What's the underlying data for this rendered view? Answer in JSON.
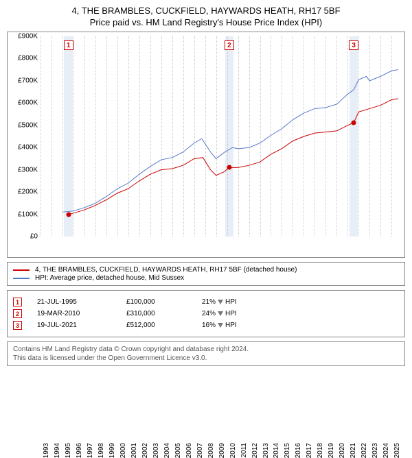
{
  "title_line1": "4, THE BRAMBLES, CUCKFIELD, HAYWARDS HEATH, RH17 5BF",
  "title_line2": "Price paid vs. HM Land Registry's House Price Index (HPI)",
  "chart": {
    "type": "line",
    "x_years": [
      1993,
      1994,
      1995,
      1996,
      1997,
      1998,
      1999,
      2000,
      2001,
      2002,
      2003,
      2004,
      2005,
      2006,
      2007,
      2008,
      2009,
      2010,
      2011,
      2012,
      2013,
      2014,
      2015,
      2016,
      2017,
      2018,
      2019,
      2020,
      2021,
      2022,
      2023,
      2024,
      2025
    ],
    "xlim": [
      1993,
      2025.8
    ],
    "ylim": [
      0,
      900
    ],
    "y_unit_prefix": "£",
    "y_unit_suffix": "K",
    "ytick_step": 100,
    "tick_fontsize": 10,
    "x_tick_rotation_deg": -90,
    "series": {
      "property": {
        "color": "#cc0000",
        "width": 1,
        "label": "4, THE BRAMBLES, CUCKFIELD, HAYWARDS HEATH, RH17 5BF (detached house)",
        "data": [
          [
            1995.55,
            100
          ],
          [
            1996,
            105
          ],
          [
            1997,
            120
          ],
          [
            1998,
            140
          ],
          [
            1999,
            165
          ],
          [
            2000,
            195
          ],
          [
            2001,
            215
          ],
          [
            2002,
            250
          ],
          [
            2003,
            280
          ],
          [
            2004,
            300
          ],
          [
            2005,
            305
          ],
          [
            2006,
            320
          ],
          [
            2007,
            350
          ],
          [
            2007.8,
            355
          ],
          [
            2008.5,
            300
          ],
          [
            2009,
            275
          ],
          [
            2009.7,
            290
          ],
          [
            2010.21,
            310
          ],
          [
            2011,
            310
          ],
          [
            2012,
            320
          ],
          [
            2013,
            335
          ],
          [
            2014,
            370
          ],
          [
            2015,
            395
          ],
          [
            2016,
            430
          ],
          [
            2017,
            450
          ],
          [
            2018,
            465
          ],
          [
            2019,
            470
          ],
          [
            2020,
            475
          ],
          [
            2021,
            500
          ],
          [
            2021.55,
            512
          ],
          [
            2022,
            560
          ],
          [
            2023,
            575
          ],
          [
            2024,
            590
          ],
          [
            2025,
            615
          ],
          [
            2025.6,
            620
          ]
        ]
      },
      "hpi": {
        "color": "#5577cc",
        "width": 1,
        "label": "HPI: Average price, detached house, Mid Sussex",
        "data": [
          [
            1995,
            110
          ],
          [
            1996,
            115
          ],
          [
            1997,
            130
          ],
          [
            1998,
            150
          ],
          [
            1999,
            180
          ],
          [
            2000,
            215
          ],
          [
            2001,
            240
          ],
          [
            2002,
            280
          ],
          [
            2003,
            315
          ],
          [
            2004,
            345
          ],
          [
            2005,
            355
          ],
          [
            2006,
            380
          ],
          [
            2007,
            420
          ],
          [
            2007.7,
            440
          ],
          [
            2008.5,
            380
          ],
          [
            2009,
            350
          ],
          [
            2009.8,
            380
          ],
          [
            2010.5,
            400
          ],
          [
            2011,
            395
          ],
          [
            2012,
            400
          ],
          [
            2013,
            420
          ],
          [
            2014,
            455
          ],
          [
            2015,
            485
          ],
          [
            2016,
            525
          ],
          [
            2017,
            555
          ],
          [
            2018,
            575
          ],
          [
            2019,
            580
          ],
          [
            2020,
            595
          ],
          [
            2021,
            640
          ],
          [
            2021.55,
            660
          ],
          [
            2022,
            705
          ],
          [
            2022.7,
            720
          ],
          [
            2023,
            700
          ],
          [
            2024,
            720
          ],
          [
            2025,
            745
          ],
          [
            2025.6,
            750
          ]
        ]
      }
    },
    "marker_band_color": "#e8eef7",
    "marker_band_half_width_years": 0.4,
    "marker_box_border": "#cc0000",
    "marker_box_text_color": "#cc0000",
    "markers": [
      {
        "n": "1",
        "year": 1995.55,
        "value": 100,
        "date_label": "21-JUL-1995",
        "price_label": "£100,000",
        "delta_pct": "21%",
        "delta_dir": "down",
        "delta_vs": "HPI"
      },
      {
        "n": "2",
        "year": 2010.21,
        "value": 310,
        "date_label": "19-MAR-2010",
        "price_label": "£310,000",
        "delta_pct": "24%",
        "delta_dir": "down",
        "delta_vs": "HPI"
      },
      {
        "n": "3",
        "year": 2021.55,
        "value": 512,
        "date_label": "19-JUL-2021",
        "price_label": "£512,000",
        "delta_pct": "16%",
        "delta_dir": "down",
        "delta_vs": "HPI"
      }
    ],
    "grid_color": "#cccccc",
    "background_color": "#ffffff"
  },
  "footer_line1": "Contains HM Land Registry data © Crown copyright and database right 2024.",
  "footer_line2": "This data is licensed under the Open Government Licence v3.0."
}
